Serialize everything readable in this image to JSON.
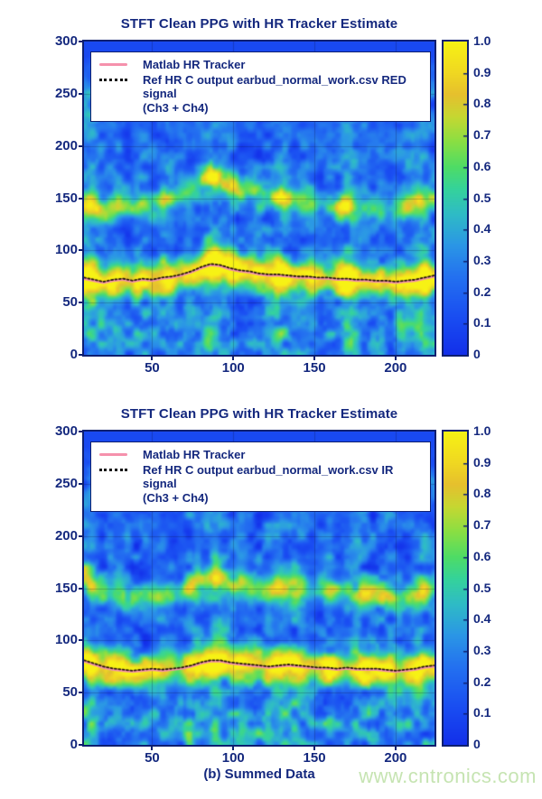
{
  "palette": {
    "text_navy": "#14287e",
    "axis_border": "#0e1f70",
    "tracker_pink": "#f591ac",
    "ref_line_black": "#241708",
    "watermark_green": "#c6e4b2",
    "background": "#ffffff",
    "colormap_stops": [
      [
        0.0,
        "#1330ea"
      ],
      [
        0.12,
        "#1a4ef2"
      ],
      [
        0.25,
        "#2472f0"
      ],
      [
        0.35,
        "#2b97e6"
      ],
      [
        0.45,
        "#2fbcc6"
      ],
      [
        0.53,
        "#35d39b"
      ],
      [
        0.6,
        "#4fdc66"
      ],
      [
        0.68,
        "#8adf44"
      ],
      [
        0.76,
        "#c6d832"
      ],
      [
        0.83,
        "#e6c02e"
      ],
      [
        0.9,
        "#f0d822"
      ],
      [
        1.0,
        "#f7f215"
      ]
    ]
  },
  "watermark": {
    "text": "www.cntronics.com"
  },
  "colorbar": {
    "tick_labels": [
      "1.0",
      "0.9",
      "0.8",
      "0.7",
      "0.6",
      "0.5",
      "0.4",
      "0.3",
      "0.2",
      "0.1",
      "0"
    ],
    "range": [
      0,
      1
    ]
  },
  "chart_data": [
    {
      "type": "heatmap",
      "title": "STFT Clean PPG with HR Tracker Estimate",
      "xlabel": "",
      "x_range": [
        8,
        224
      ],
      "y_range": [
        0,
        300
      ],
      "x_tick_values": [
        50,
        100,
        150,
        200
      ],
      "x_tick_labels": [
        "50",
        "100",
        "150",
        "200"
      ],
      "y_tick_values": [
        300,
        250,
        200,
        150,
        100,
        50,
        0
      ],
      "y_tick_labels": [
        "300",
        "250",
        "200",
        "150",
        "100",
        "50",
        "0"
      ],
      "grid": true,
      "legend_position": "top-inside",
      "legend": [
        {
          "label": "Matlab HR Tracker",
          "style": "pink-solid"
        },
        {
          "label_line1": "Ref HR C output earbud_normal_work.csv RED signal",
          "label_line2": "(Ch3 + Ch4)",
          "style": "black-dotted"
        }
      ],
      "series": [
        {
          "name": "Matlab HR Tracker",
          "style": "pink-solid"
        },
        {
          "name": "Ref HR C output earbud_normal_work.csv RED signal (Ch3 + Ch4)",
          "style": "black-dotted"
        }
      ],
      "hr_track": {
        "x": [
          8,
          14,
          20,
          26,
          32,
          38,
          44,
          50,
          56,
          62,
          68,
          74,
          80,
          86,
          92,
          98,
          104,
          110,
          116,
          122,
          128,
          134,
          140,
          146,
          152,
          158,
          164,
          170,
          176,
          182,
          188,
          194,
          200,
          206,
          212,
          218,
          224
        ],
        "bpm": [
          73,
          71,
          69,
          71,
          72,
          70,
          72,
          71,
          73,
          74,
          76,
          79,
          83,
          86,
          85,
          82,
          80,
          79,
          77,
          76,
          76,
          75,
          74,
          74,
          73,
          73,
          72,
          72,
          71,
          71,
          70,
          70,
          69,
          70,
          71,
          73,
          75
        ]
      },
      "texture": {
        "seed": 7,
        "noise_base": 0.1,
        "noise_amp": 0.36,
        "fundamental": {
          "amp": 0.62,
          "hot_amp": 0.38,
          "sigma": 11
        },
        "harmonic": {
          "amp": 0.3,
          "hot_amp": 0.3,
          "sigma": 9,
          "mult": 2
        },
        "low_band": {
          "amp": 0.16,
          "center": 20,
          "sigma": 15
        },
        "streak_amp": 0.17,
        "hotspots": [
          {
            "x": 11,
            "a": 1.0
          },
          {
            "x": 27,
            "a": 0.7
          },
          {
            "x": 44,
            "a": 0.45
          },
          {
            "x": 58,
            "a": 0.5
          },
          {
            "x": 71,
            "a": 0.55
          },
          {
            "x": 86,
            "a": 0.9
          },
          {
            "x": 97,
            "a": 0.6
          },
          {
            "x": 112,
            "a": 0.5
          },
          {
            "x": 129,
            "a": 0.85
          },
          {
            "x": 146,
            "a": 0.5
          },
          {
            "x": 170,
            "a": 1.0
          },
          {
            "x": 186,
            "a": 0.45
          },
          {
            "x": 203,
            "a": 0.5
          },
          {
            "x": 216,
            "a": 0.9
          }
        ]
      }
    },
    {
      "type": "heatmap",
      "title": "STFT Clean PPG with HR Tracker Estimate",
      "xlabel": "(b) Summed Data",
      "x_range": [
        8,
        224
      ],
      "y_range": [
        0,
        300
      ],
      "x_tick_values": [
        50,
        100,
        150,
        200
      ],
      "x_tick_labels": [
        "50",
        "100",
        "150",
        "200"
      ],
      "y_tick_values": [
        300,
        250,
        200,
        150,
        100,
        50,
        0
      ],
      "y_tick_labels": [
        "300",
        "250",
        "200",
        "150",
        "100",
        "50",
        "0"
      ],
      "grid": true,
      "legend_position": "top-inside",
      "legend": [
        {
          "label": "Matlab HR Tracker",
          "style": "pink-solid"
        },
        {
          "label_line1": "Ref HR C output earbud_normal_work.csv IR signal",
          "label_line2": "(Ch3 + Ch4)",
          "style": "black-dotted"
        }
      ],
      "series": [
        {
          "name": "Matlab HR Tracker",
          "style": "pink-solid"
        },
        {
          "name": "Ref HR C output earbud_normal_work.csv IR signal (Ch3 + Ch4)",
          "style": "black-dotted"
        }
      ],
      "hr_track": {
        "x": [
          8,
          14,
          20,
          26,
          32,
          38,
          44,
          50,
          56,
          62,
          68,
          74,
          80,
          86,
          92,
          98,
          104,
          110,
          116,
          122,
          128,
          134,
          140,
          146,
          152,
          158,
          164,
          170,
          176,
          182,
          188,
          194,
          200,
          206,
          212,
          218,
          224
        ],
        "bpm": [
          80,
          77,
          74,
          72,
          71,
          70,
          71,
          72,
          71,
          72,
          73,
          75,
          78,
          80,
          80,
          78,
          77,
          76,
          75,
          74,
          75,
          76,
          75,
          74,
          73,
          73,
          72,
          73,
          72,
          72,
          72,
          71,
          70,
          71,
          72,
          74,
          75
        ]
      },
      "texture": {
        "seed": 13,
        "noise_base": 0.11,
        "noise_amp": 0.37,
        "fundamental": {
          "amp": 0.66,
          "hot_amp": 0.3,
          "sigma": 11
        },
        "harmonic": {
          "amp": 0.32,
          "hot_amp": 0.28,
          "sigma": 9,
          "mult": 2
        },
        "low_band": {
          "amp": 0.17,
          "center": 20,
          "sigma": 15
        },
        "streak_amp": 0.17,
        "hotspots": [
          {
            "x": 11,
            "a": 0.9
          },
          {
            "x": 30,
            "a": 0.5
          },
          {
            "x": 55,
            "a": 0.5
          },
          {
            "x": 76,
            "a": 0.6
          },
          {
            "x": 89,
            "a": 0.8
          },
          {
            "x": 106,
            "a": 0.6
          },
          {
            "x": 128,
            "a": 0.9
          },
          {
            "x": 141,
            "a": 0.6
          },
          {
            "x": 161,
            "a": 0.5
          },
          {
            "x": 179,
            "a": 0.55
          },
          {
            "x": 196,
            "a": 0.5
          },
          {
            "x": 214,
            "a": 0.75
          }
        ]
      }
    }
  ]
}
